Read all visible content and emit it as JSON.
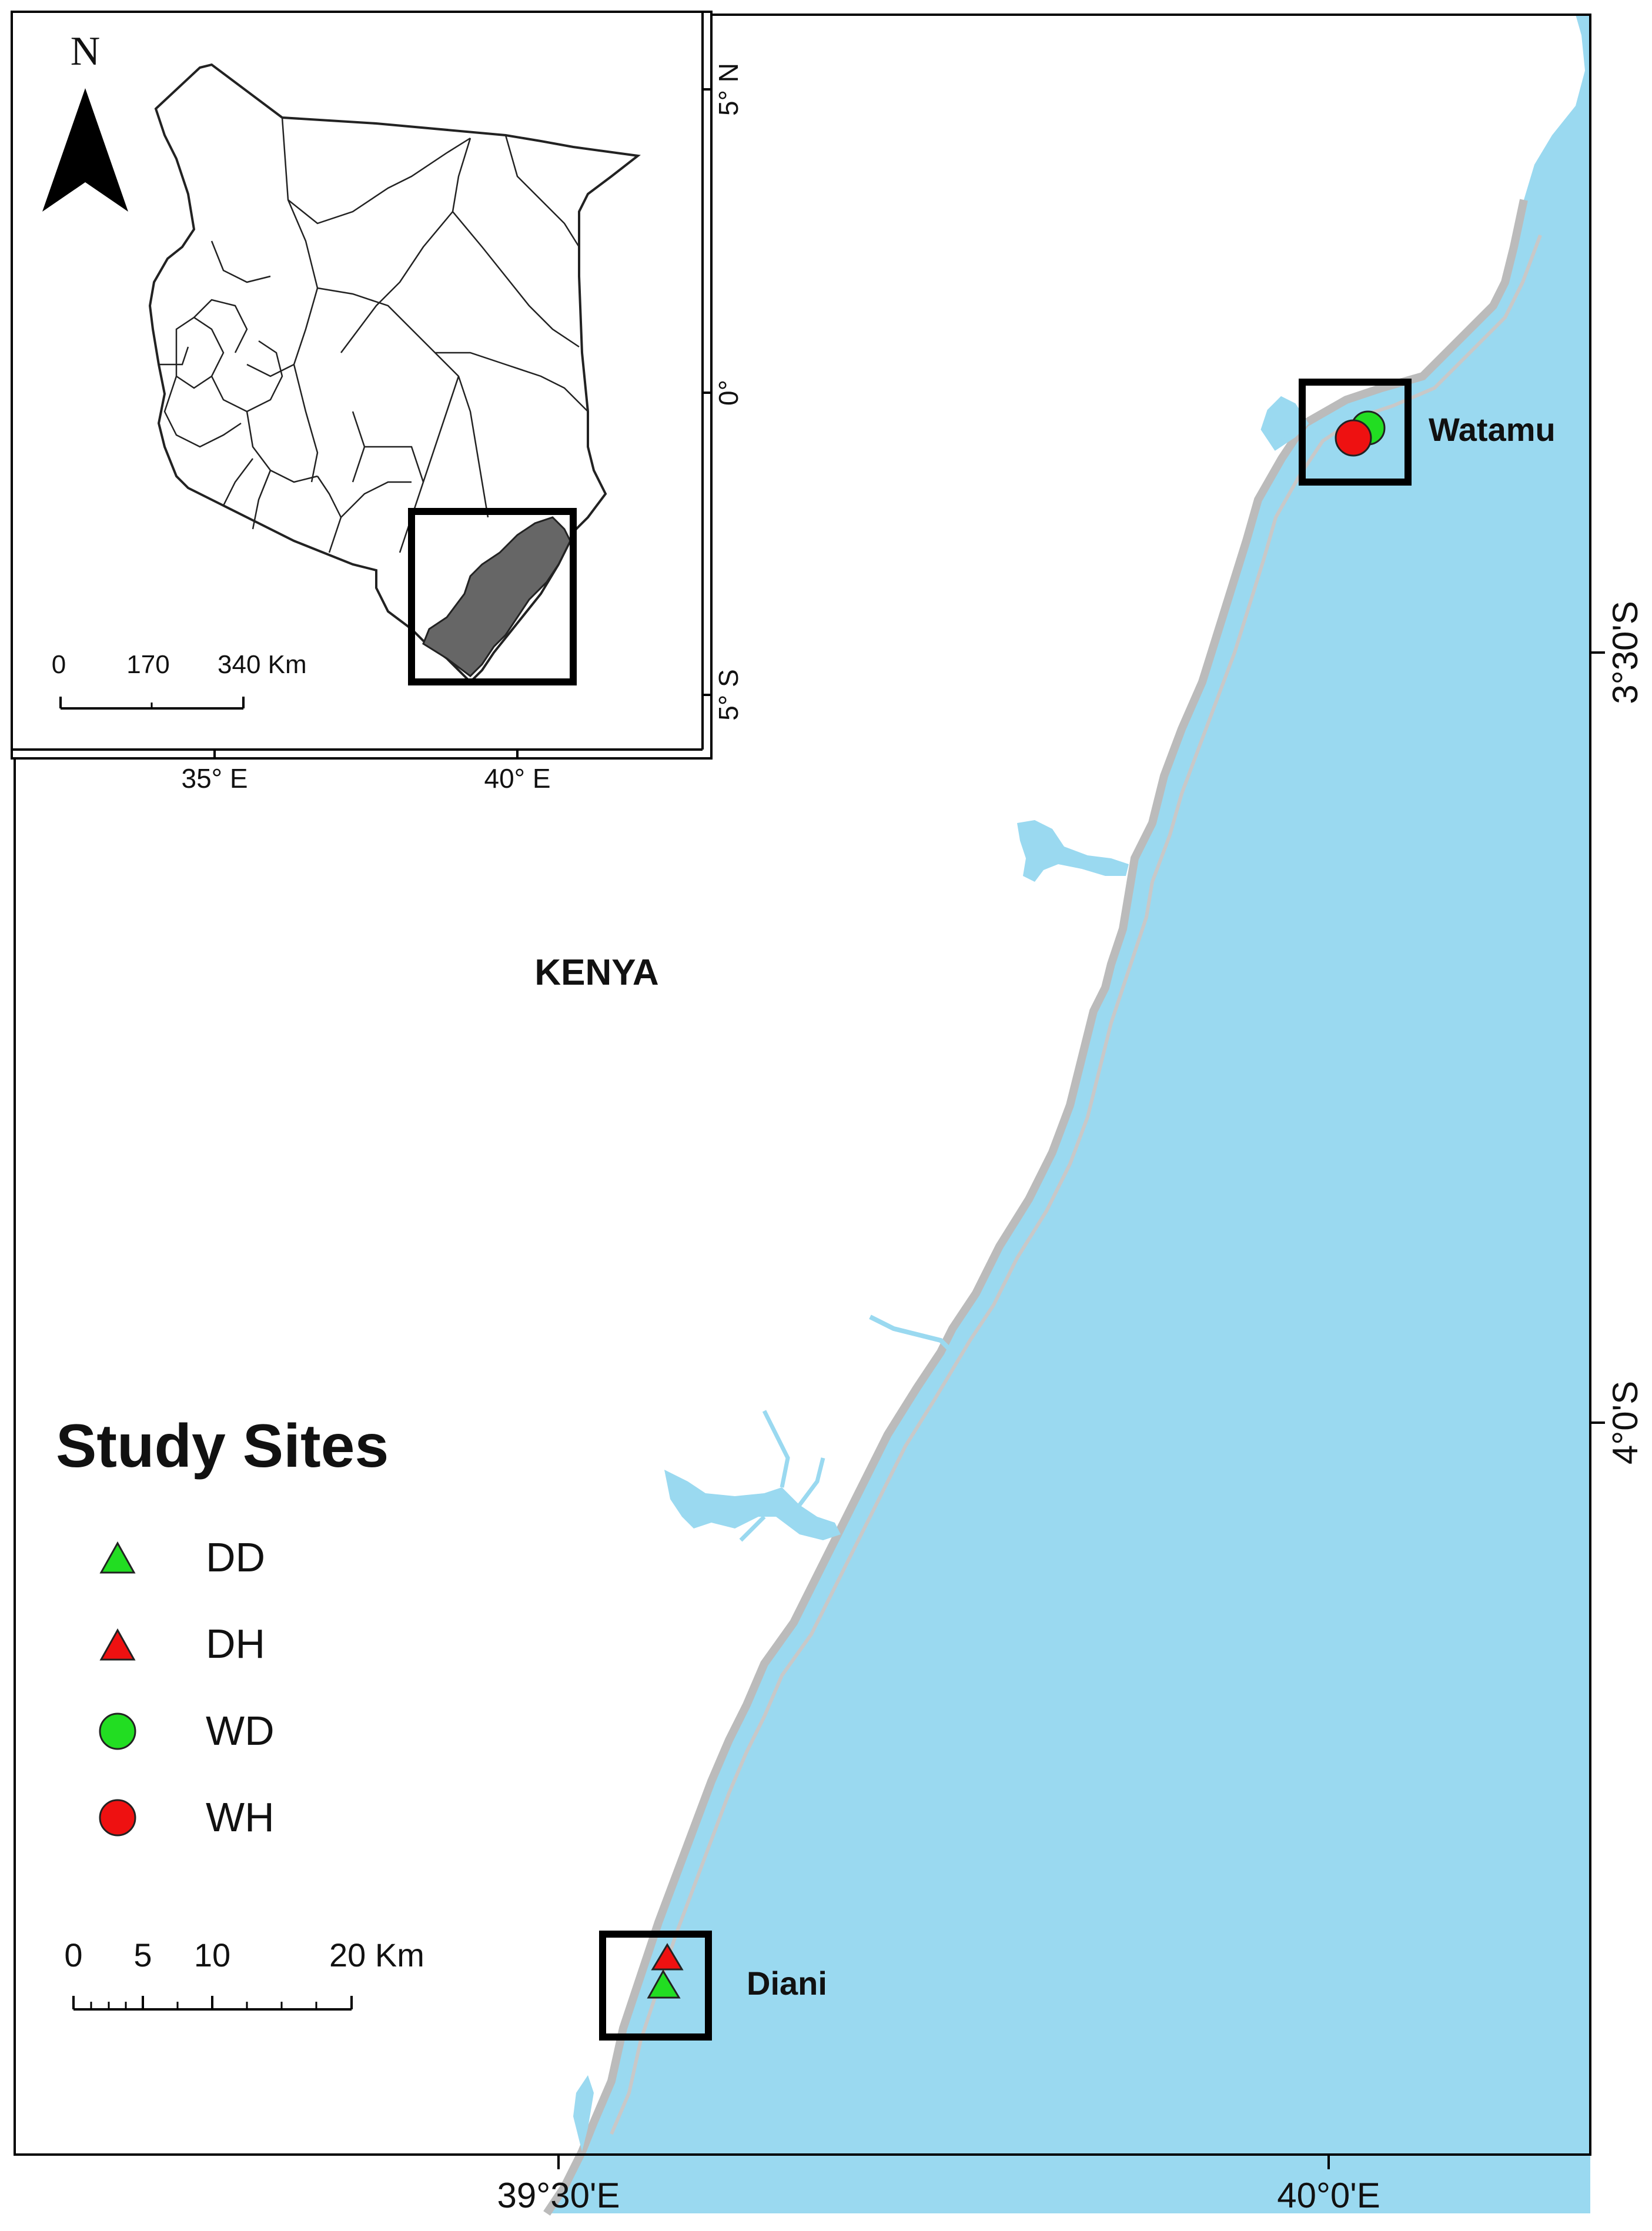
{
  "country_label": "KENYA",
  "sites": [
    {
      "label": "Watamu"
    },
    {
      "label": "Diani"
    }
  ],
  "legend": {
    "title": "Study Sites",
    "items": [
      {
        "label": "DD",
        "symbol": "triangle",
        "color": "#22dd22"
      },
      {
        "label": "DH",
        "symbol": "triangle",
        "color": "#ee1111"
      },
      {
        "label": "WD",
        "symbol": "circle",
        "color": "#22dd22"
      },
      {
        "label": "WH",
        "symbol": "circle",
        "color": "#ee1111"
      }
    ]
  },
  "scalebar": {
    "ticks": [
      "0",
      "5",
      "10",
      "20 Km"
    ]
  },
  "axes": {
    "x_bottom": [
      "39°30'E",
      "40°0'E"
    ],
    "y_right": [
      "3°30'S",
      "4°0'S"
    ]
  },
  "inset": {
    "north_label": "N",
    "scalebar": [
      "0",
      "170",
      "340 Km"
    ],
    "x_ticks": [
      "35° E",
      "40° E"
    ],
    "y_ticks": [
      "5° N",
      "0°",
      "5° S"
    ]
  },
  "colors": {
    "sea": "#9ad9f0",
    "coast_outline": "#bbbbbb",
    "region_fill": "#666666",
    "frame": "#000000"
  }
}
